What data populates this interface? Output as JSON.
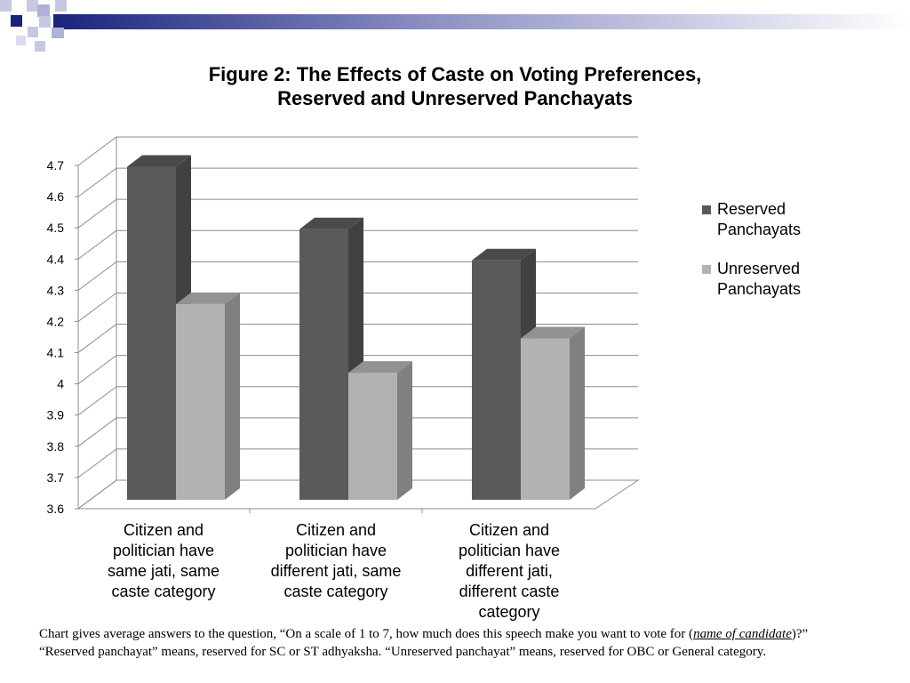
{
  "chart_data": {
    "type": "bar",
    "title": "Figure 2: The Effects of Caste on Voting Preferences,",
    "subtitle": "Reserved and Unreserved Panchayats",
    "categories": [
      "Citizen and politician have same jati, same caste category",
      "Citizen and politician have different jati, same caste category",
      "Citizen and politician have different jati, different caste category"
    ],
    "category_lines": [
      [
        "Citizen and",
        "politician have",
        "same jati, same",
        "caste category"
      ],
      [
        "Citizen and",
        "politician have",
        "different jati, same",
        "caste category"
      ],
      [
        "Citizen and",
        "politician have",
        "different jati,",
        "different caste",
        "category"
      ]
    ],
    "series": [
      {
        "name": "Reserved Panchayats",
        "name_lines": [
          "Reserved",
          "Panchayats"
        ],
        "values": [
          4.69,
          4.49,
          4.39
        ],
        "color": "#5a5a5a"
      },
      {
        "name": "Unreserved Panchayats",
        "name_lines": [
          "Unreserved",
          "Panchayats"
        ],
        "values": [
          4.25,
          4.03,
          4.14
        ],
        "color": "#b2b2b2"
      }
    ],
    "yticks": [
      "3.6",
      "3.7",
      "3.8",
      "3.9",
      "4",
      "4.1",
      "4.2",
      "4.3",
      "4.4",
      "4.5",
      "4.6",
      "4.7"
    ],
    "ylim": [
      3.6,
      4.7
    ],
    "grid": true,
    "legend_position": "right",
    "xlabel": "",
    "ylabel": ""
  },
  "caption": {
    "part1": "Chart gives average answers to the question, “On a scale of 1 to 7, how much does this speech make you want to vote for (",
    "part2": "name of candidate",
    "part3": ")?”   “Reserved panchayat” means, reserved for SC or ST adhyaksha.  “Unreserved panchayat” means, reserved for OBC or General category."
  },
  "colors": {
    "header_navy": "#1a237e",
    "reserved": "#5a5a5a",
    "unreserved": "#b2b2b2",
    "grid": "#8c8c8c"
  }
}
